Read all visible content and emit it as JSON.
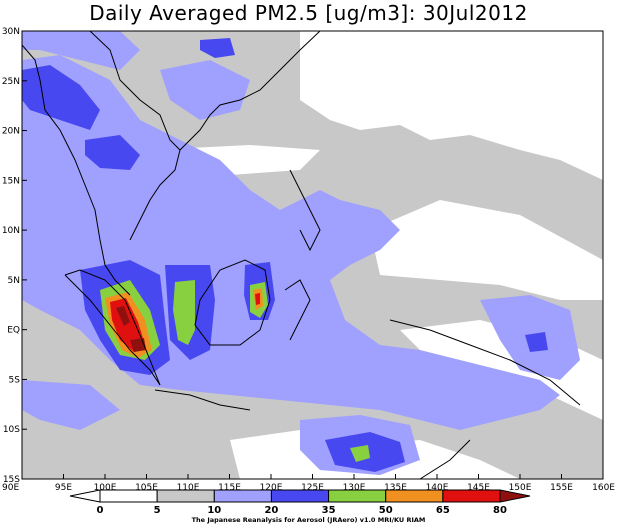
{
  "title": "Daily Averaged PM2.5 [ug/m3]: 30Jul2012",
  "credit": "The Japanese Reanalysis for Aerosol (JRAero) v1.0 MRI/KU RIAM",
  "map": {
    "lon_range": [
      90,
      160
    ],
    "lat_range": [
      -15,
      30
    ],
    "x_ticks": [
      {
        "value": 90,
        "label": "90E"
      },
      {
        "value": 95,
        "label": "95E"
      },
      {
        "value": 100,
        "label": "100E"
      },
      {
        "value": 105,
        "label": "105E"
      },
      {
        "value": 110,
        "label": "110E"
      },
      {
        "value": 115,
        "label": "115E"
      },
      {
        "value": 120,
        "label": "120E"
      },
      {
        "value": 125,
        "label": "125E"
      },
      {
        "value": 130,
        "label": "130E"
      },
      {
        "value": 135,
        "label": "135E"
      },
      {
        "value": 140,
        "label": "140E"
      },
      {
        "value": 145,
        "label": "145E"
      },
      {
        "value": 150,
        "label": "150E"
      },
      {
        "value": 155,
        "label": "155E"
      },
      {
        "value": 160,
        "label": "160E"
      }
    ],
    "y_ticks": [
      {
        "value": 30,
        "label": "30N"
      },
      {
        "value": 25,
        "label": "25N"
      },
      {
        "value": 20,
        "label": "20N"
      },
      {
        "value": 15,
        "label": "15N"
      },
      {
        "value": 10,
        "label": "10N"
      },
      {
        "value": 5,
        "label": "5N"
      },
      {
        "value": 0,
        "label": "EQ"
      },
      {
        "value": -5,
        "label": "5S"
      },
      {
        "value": -10,
        "label": "10S"
      },
      {
        "value": -15,
        "label": "15S"
      }
    ]
  },
  "colorbar": {
    "levels": [
      "0",
      "5",
      "10",
      "20",
      "35",
      "50",
      "65",
      "80"
    ],
    "colors": [
      "#ffffff",
      "#ffffff",
      "#c8c8c8",
      "#a0a0ff",
      "#4848f0",
      "#88d040",
      "#f09020",
      "#e01010",
      "#901010"
    ]
  },
  "fill_colors": {
    "gray": "#c8c8c8",
    "light_blue": "#a0a0ff",
    "blue": "#4848f0",
    "green": "#88d040",
    "orange": "#f09020",
    "red": "#e01010",
    "dark_red": "#901010"
  }
}
